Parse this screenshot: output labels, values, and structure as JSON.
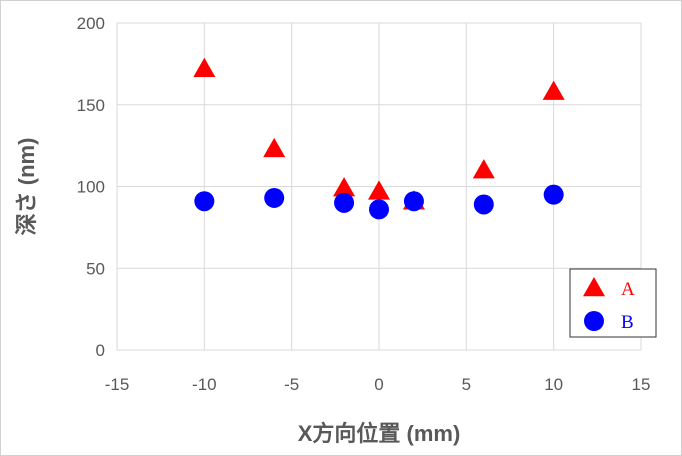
{
  "chart_data": {
    "type": "scatter",
    "title": "",
    "xlabel": "X方向位置 (mm)",
    "ylabel": "深さ (nm)",
    "xlim": [
      -15,
      15
    ],
    "ylim": [
      0,
      200
    ],
    "x_ticks": [
      "-15",
      "-10",
      "-5",
      "0",
      "5",
      "10",
      "15"
    ],
    "y_ticks": [
      "0",
      "50",
      "100",
      "150",
      "200"
    ],
    "grid": true,
    "legend_position": "bottom-right",
    "series": [
      {
        "name": "A",
        "marker": "triangle",
        "color": "#ff0000",
        "points": [
          {
            "x": -10,
            "y": 172
          },
          {
            "x": -6,
            "y": 123
          },
          {
            "x": -2,
            "y": 99
          },
          {
            "x": 0,
            "y": 97
          },
          {
            "x": 2,
            "y": 91
          },
          {
            "x": 6,
            "y": 110
          },
          {
            "x": 10,
            "y": 158
          }
        ]
      },
      {
        "name": "B",
        "marker": "circle",
        "color": "#0000ff",
        "points": [
          {
            "x": -10,
            "y": 91
          },
          {
            "x": -6,
            "y": 93
          },
          {
            "x": -2,
            "y": 90
          },
          {
            "x": 0,
            "y": 86
          },
          {
            "x": 2,
            "y": 91
          },
          {
            "x": 6,
            "y": 89
          },
          {
            "x": 10,
            "y": 95
          }
        ]
      }
    ]
  }
}
